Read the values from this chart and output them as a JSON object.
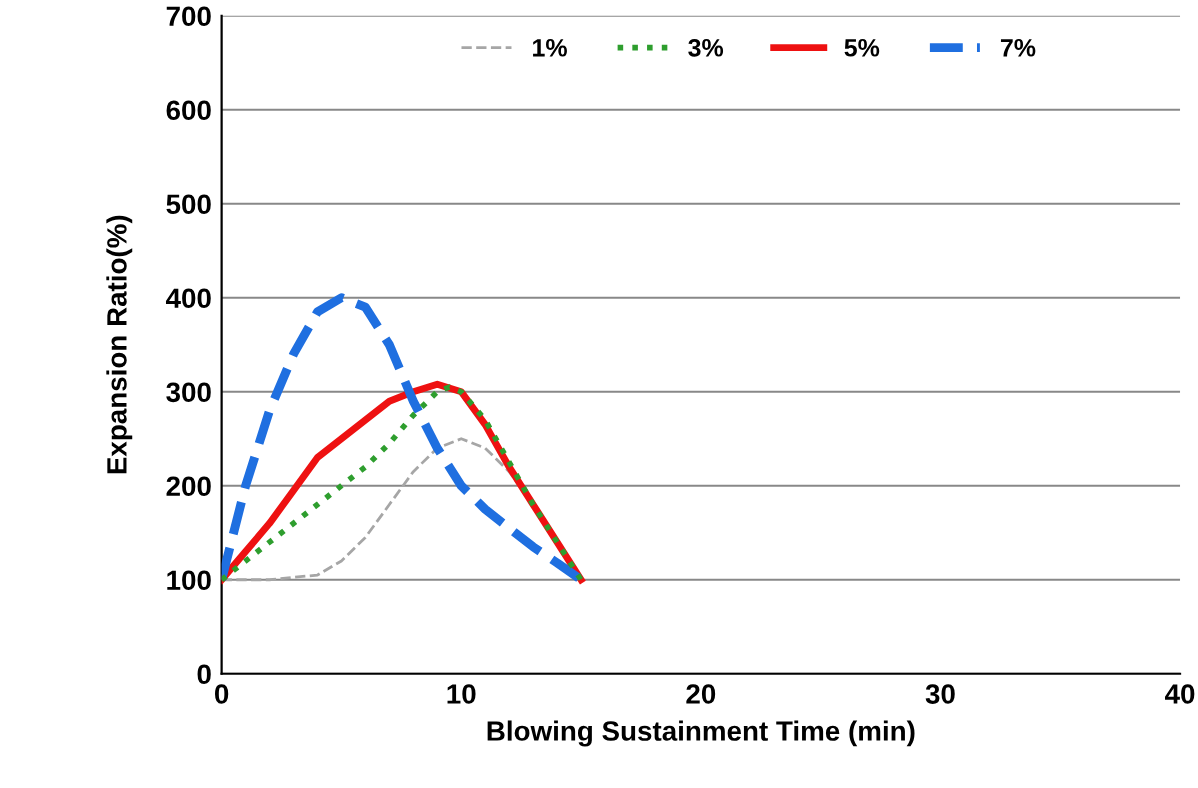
{
  "chart_data": {
    "type": "line",
    "xlabel": "Blowing Sustainment Time (min)",
    "ylabel": "Expansion Ratio(%)",
    "xlim": [
      0,
      40
    ],
    "xticks": [
      0,
      10,
      20,
      30,
      40
    ],
    "ylim": [
      0,
      700
    ],
    "yticks": [
      0,
      100,
      200,
      300,
      400,
      500,
      600,
      700
    ],
    "grid": "y",
    "legend": "top",
    "marker": "none",
    "series": [
      {
        "name": "1%",
        "color": "#a6a6a6",
        "line_style": "dashed",
        "x": [
          0,
          2,
          4,
          5,
          6,
          7,
          8,
          9,
          10,
          11,
          12,
          13,
          14,
          15
        ],
        "values": [
          100,
          100,
          105,
          120,
          145,
          180,
          215,
          240,
          250,
          240,
          215,
          180,
          140,
          100
        ]
      },
      {
        "name": "3%",
        "color": "#2e9e2e",
        "line_style": "dotted",
        "x": [
          0,
          2,
          4,
          6,
          7,
          8,
          9,
          9.5,
          10,
          11,
          12,
          13,
          14,
          15
        ],
        "values": [
          100,
          140,
          180,
          220,
          245,
          275,
          300,
          305,
          300,
          270,
          225,
          180,
          140,
          100
        ]
      },
      {
        "name": "5%",
        "color": "#ee1111",
        "line_style": "solid",
        "x": [
          0,
          1,
          2,
          3,
          4,
          5,
          6,
          7,
          8,
          9,
          10,
          11,
          12,
          13,
          14,
          15
        ],
        "values": [
          100,
          130,
          160,
          195,
          230,
          250,
          270,
          290,
          300,
          308,
          300,
          265,
          220,
          180,
          140,
          100
        ]
      },
      {
        "name": "7%",
        "color": "#1f6fe0",
        "line_style": "dashed",
        "x": [
          0,
          1,
          2,
          3,
          4,
          5,
          6,
          7,
          8,
          9,
          10,
          11,
          12,
          13,
          14,
          15
        ],
        "values": [
          100,
          200,
          280,
          340,
          385,
          400,
          390,
          350,
          290,
          240,
          200,
          175,
          155,
          135,
          118,
          100
        ]
      }
    ]
  }
}
